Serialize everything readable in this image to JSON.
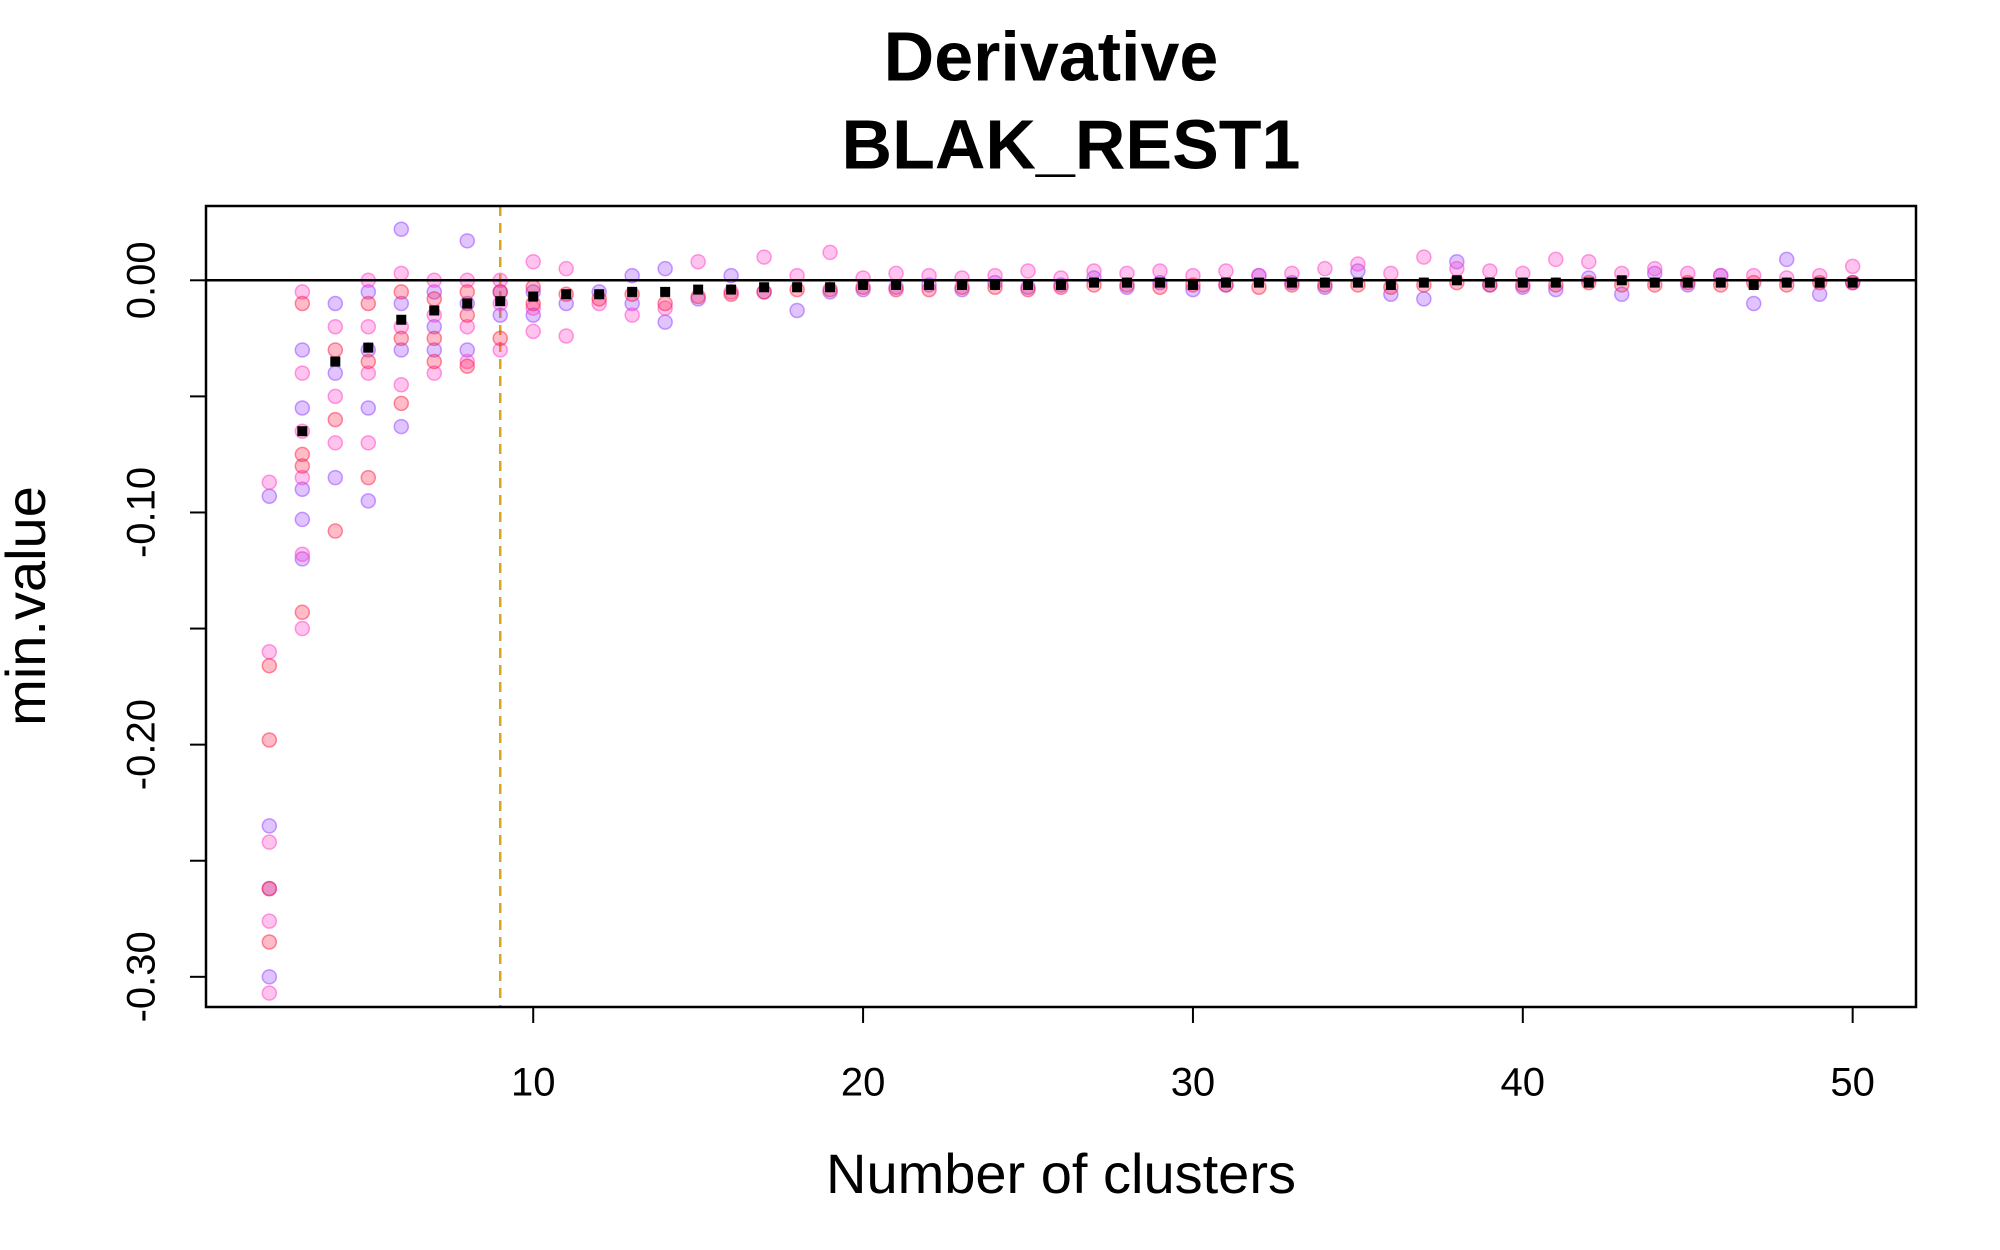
{
  "chart_data": {
    "type": "scatter",
    "title": "Derivative",
    "subtitle": "BLAK_REST1",
    "x_label": "Number of clusters",
    "y_label": "min.value",
    "xlim": [
      0.08,
      51.92
    ],
    "ylim": [
      -0.313,
      0.032
    ],
    "xticks": [
      10,
      20,
      30,
      40,
      50
    ],
    "yticks": [
      {
        "value": 0,
        "label": "0.00"
      },
      {
        "value": -0.1,
        "label": "-0.10"
      },
      {
        "value": -0.2,
        "label": "-0.20"
      },
      {
        "value": -0.3,
        "label": "-0.30"
      }
    ],
    "yminor_ticks": [
      -0.05,
      -0.15,
      -0.25
    ],
    "hline": {
      "value": 0,
      "color": "#000000"
    },
    "vline": {
      "value": 9,
      "color": "#daa520"
    },
    "series": [
      {
        "color": "rgba(150,60,255,0.3)",
        "stroke": "rgba(150,60,255,0.5)",
        "x": [
          2,
          2,
          2,
          2,
          3,
          3,
          3,
          3,
          3,
          4,
          4,
          4,
          5,
          5,
          5,
          5,
          6,
          6,
          6,
          6,
          7,
          7,
          7,
          8,
          8,
          8,
          9,
          9,
          10,
          10,
          11,
          12,
          13,
          13,
          14,
          14,
          15,
          16,
          17,
          18,
          19,
          20,
          21,
          22,
          23,
          24,
          25,
          26,
          27,
          28,
          29,
          30,
          31,
          32,
          33,
          34,
          35,
          36,
          37,
          38,
          39,
          40,
          41,
          42,
          43,
          44,
          45,
          46,
          47,
          48,
          49,
          50
        ],
        "values": [
          -0.093,
          -0.235,
          -0.262,
          -0.3,
          -0.03,
          -0.055,
          -0.09,
          -0.103,
          -0.12,
          -0.01,
          -0.04,
          -0.085,
          -0.005,
          -0.03,
          -0.055,
          -0.095,
          0.022,
          -0.01,
          -0.03,
          -0.063,
          -0.005,
          -0.02,
          -0.03,
          0.017,
          -0.01,
          -0.03,
          -0.005,
          -0.015,
          -0.005,
          -0.015,
          -0.01,
          -0.005,
          0.002,
          -0.01,
          0.005,
          -0.018,
          -0.008,
          0.002,
          -0.005,
          -0.013,
          -0.005,
          -0.004,
          -0.003,
          -0.002,
          -0.004,
          -0.001,
          -0.003,
          -0.002,
          0.001,
          -0.003,
          -0.001,
          -0.004,
          -0.002,
          0.002,
          -0.001,
          -0.003,
          0.004,
          -0.006,
          -0.008,
          0.008,
          -0.002,
          -0.003,
          -0.004,
          0.001,
          -0.006,
          0.003,
          -0.002,
          0.002,
          -0.01,
          0.009,
          -0.006,
          -0.001
        ]
      },
      {
        "color": "rgba(255,60,200,0.3)",
        "stroke": "rgba(255,60,200,0.5)",
        "x": [
          2,
          2,
          2,
          2,
          2,
          3,
          3,
          3,
          3,
          3,
          3,
          4,
          4,
          4,
          5,
          5,
          5,
          5,
          6,
          6,
          6,
          7,
          7,
          7,
          8,
          8,
          8,
          9,
          9,
          9,
          10,
          10,
          10,
          11,
          11,
          12,
          13,
          14,
          15,
          16,
          17,
          18,
          19,
          20,
          21,
          22,
          23,
          24,
          25,
          26,
          27,
          28,
          29,
          30,
          31,
          32,
          33,
          34,
          35,
          36,
          37,
          38,
          39,
          40,
          41,
          42,
          43,
          44,
          45,
          46,
          47,
          48,
          49,
          50
        ],
        "values": [
          -0.087,
          -0.16,
          -0.242,
          -0.276,
          -0.307,
          -0.005,
          -0.04,
          -0.065,
          -0.085,
          -0.118,
          -0.15,
          -0.02,
          -0.05,
          -0.07,
          0,
          -0.02,
          -0.04,
          -0.07,
          0.003,
          -0.02,
          -0.045,
          0,
          -0.015,
          -0.04,
          0,
          -0.02,
          -0.035,
          0,
          -0.01,
          -0.03,
          0.008,
          -0.012,
          -0.022,
          0.005,
          -0.024,
          -0.01,
          -0.015,
          -0.012,
          0.008,
          -0.005,
          0.01,
          0.002,
          0.012,
          0.001,
          0.003,
          0.002,
          0.001,
          0.002,
          0.004,
          0.001,
          0.004,
          0.003,
          0.004,
          0.002,
          0.004,
          0.002,
          0.003,
          0.005,
          0.007,
          0.003,
          0.01,
          0.005,
          0.004,
          0.003,
          0.009,
          0.008,
          0.003,
          0.005,
          0.003,
          0.002,
          0.002,
          0.001,
          0.002,
          0.006
        ]
      },
      {
        "color": "rgba(255,30,70,0.3)",
        "stroke": "rgba(255,30,70,0.5)",
        "x": [
          2,
          2,
          2,
          2,
          3,
          3,
          3,
          3,
          4,
          4,
          4,
          5,
          5,
          5,
          6,
          6,
          6,
          7,
          7,
          7,
          8,
          8,
          8,
          9,
          9,
          10,
          10,
          11,
          12,
          13,
          14,
          15,
          16,
          17,
          18,
          19,
          20,
          21,
          22,
          23,
          24,
          25,
          26,
          27,
          28,
          29,
          30,
          31,
          32,
          33,
          34,
          35,
          36,
          37,
          38,
          39,
          40,
          41,
          42,
          43,
          44,
          45,
          46,
          47,
          48,
          49,
          50
        ],
        "values": [
          -0.166,
          -0.198,
          -0.262,
          -0.285,
          -0.01,
          -0.075,
          -0.08,
          -0.143,
          -0.03,
          -0.06,
          -0.108,
          -0.01,
          -0.035,
          -0.085,
          -0.005,
          -0.025,
          -0.053,
          -0.008,
          -0.025,
          -0.035,
          -0.005,
          -0.015,
          -0.037,
          -0.005,
          -0.025,
          -0.003,
          -0.01,
          -0.006,
          -0.008,
          -0.006,
          -0.01,
          -0.007,
          -0.006,
          -0.005,
          -0.004,
          -0.004,
          -0.003,
          -0.004,
          -0.004,
          -0.003,
          -0.003,
          -0.004,
          -0.003,
          -0.002,
          -0.002,
          -0.003,
          -0.002,
          -0.002,
          -0.003,
          -0.002,
          -0.002,
          -0.002,
          -0.003,
          -0.002,
          -0.001,
          -0.002,
          -0.002,
          -0.002,
          -0.001,
          -0.002,
          -0.002,
          -0.001,
          -0.002,
          -0.001,
          -0.002,
          -0.001,
          -0.001
        ]
      },
      {
        "color": "#000000",
        "marker": "square",
        "x": [
          3,
          4,
          5,
          6,
          7,
          8,
          9,
          10,
          11,
          12,
          13,
          14,
          15,
          16,
          17,
          18,
          19,
          20,
          21,
          22,
          23,
          24,
          25,
          26,
          27,
          28,
          29,
          30,
          31,
          32,
          33,
          34,
          35,
          36,
          37,
          38,
          39,
          40,
          41,
          42,
          43,
          44,
          45,
          46,
          47,
          48,
          49,
          50
        ],
        "values": [
          -0.065,
          -0.035,
          -0.029,
          -0.017,
          -0.013,
          -0.01,
          -0.009,
          -0.007,
          -0.006,
          -0.006,
          -0.005,
          -0.005,
          -0.004,
          -0.004,
          -0.003,
          -0.003,
          -0.003,
          -0.002,
          -0.002,
          -0.002,
          -0.002,
          -0.002,
          -0.002,
          -0.002,
          -0.001,
          -0.001,
          -0.001,
          -0.002,
          -0.001,
          -0.001,
          -0.001,
          -0.001,
          -0.001,
          -0.002,
          -0.001,
          0,
          -0.001,
          -0.001,
          -0.001,
          -0.001,
          0,
          -0.001,
          -0.001,
          -0.001,
          -0.002,
          -0.001,
          -0.001,
          -0.001
        ]
      }
    ]
  }
}
